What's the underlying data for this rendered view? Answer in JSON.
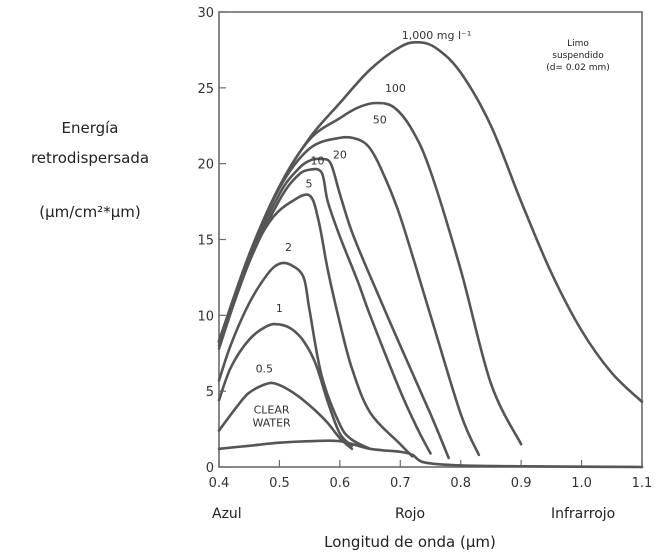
{
  "chart_data": {
    "type": "line",
    "title": "",
    "xlabel": "Longitud de onda (µm)",
    "ylabel_lines": [
      "Energía",
      "retrodispersada",
      "(µm/cm²*µm)"
    ],
    "xlim": [
      0.4,
      1.1
    ],
    "ylim": [
      0,
      30
    ],
    "x_ticks": [
      0.4,
      0.5,
      0.6,
      0.7,
      0.8,
      0.9,
      1.0,
      1.1
    ],
    "x_tick_labels": [
      "0.4",
      "0.5",
      "0.6",
      "0.7",
      "0.8",
      "0.9",
      "1.0",
      "1.1"
    ],
    "y_ticks": [
      0,
      5,
      10,
      15,
      20,
      25,
      30
    ],
    "y_tick_labels": [
      "0",
      "5",
      "10",
      "15",
      "20",
      "25",
      "30"
    ],
    "band_labels": [
      {
        "text": "Azul",
        "x": 0.42
      },
      {
        "text": "Rojo",
        "x": 0.7
      },
      {
        "text": "Infrarrojo",
        "x": 1.0
      }
    ],
    "annotation_lines": [
      "Limo",
      "suspendido",
      "(d= 0.02 mm)"
    ],
    "grid": false,
    "series": [
      {
        "label": "CLEAR WATER",
        "label_lines": [
          "CLEAR",
          "WATER"
        ],
        "label_at": [
          0.487,
          3.0
        ],
        "x": [
          0.4,
          0.45,
          0.5,
          0.55,
          0.6,
          0.65,
          0.7,
          0.72,
          0.74,
          0.8,
          0.9,
          1.0,
          1.1
        ],
        "y": [
          1.2,
          1.4,
          1.6,
          1.7,
          1.7,
          1.2,
          1.0,
          0.8,
          0.3,
          0.1,
          0.05,
          0.02,
          0.0
        ]
      },
      {
        "label": "0.5",
        "label_at": [
          0.475,
          6.5
        ],
        "x": [
          0.4,
          0.43,
          0.45,
          0.48,
          0.5,
          0.53,
          0.56,
          0.58,
          0.6,
          0.62
        ],
        "y": [
          2.4,
          4.0,
          4.9,
          5.5,
          5.4,
          4.7,
          3.7,
          2.9,
          1.9,
          1.2
        ]
      },
      {
        "label": "1",
        "label_at": [
          0.5,
          10.5
        ],
        "x": [
          0.4,
          0.42,
          0.45,
          0.48,
          0.5,
          0.52,
          0.54,
          0.56,
          0.58,
          0.6,
          0.62
        ],
        "y": [
          4.4,
          6.6,
          8.4,
          9.3,
          9.4,
          9.1,
          8.3,
          6.8,
          4.3,
          2.2,
          1.4
        ]
      },
      {
        "label": "2",
        "label_at": [
          0.515,
          14.5
        ],
        "x": [
          0.4,
          0.42,
          0.45,
          0.48,
          0.5,
          0.52,
          0.54,
          0.55,
          0.57,
          0.6,
          0.62,
          0.65
        ],
        "y": [
          5.7,
          8.1,
          10.8,
          12.7,
          13.4,
          13.3,
          12.5,
          10.3,
          6.0,
          2.8,
          1.8,
          1.2
        ]
      },
      {
        "label": "5",
        "label_at": [
          0.549,
          18.7
        ],
        "x": [
          0.4,
          0.43,
          0.46,
          0.49,
          0.52,
          0.55,
          0.565,
          0.58,
          0.6,
          0.62,
          0.65,
          0.7,
          0.72
        ],
        "y": [
          7.8,
          11.4,
          14.5,
          16.5,
          17.5,
          17.9,
          16.2,
          13.0,
          9.5,
          6.5,
          3.6,
          1.5,
          0.7
        ]
      },
      {
        "label": "10",
        "label_at": [
          0.563,
          20.2
        ],
        "x": [
          0.4,
          0.45,
          0.5,
          0.53,
          0.55,
          0.57,
          0.58,
          0.6,
          0.63,
          0.65,
          0.7,
          0.73,
          0.75
        ],
        "y": [
          8.0,
          13.5,
          17.6,
          19.2,
          19.6,
          19.4,
          17.5,
          15.2,
          12.2,
          10.0,
          5.0,
          2.4,
          0.9
        ]
      },
      {
        "label": "20",
        "label_at": [
          0.6,
          20.6
        ],
        "x": [
          0.4,
          0.45,
          0.5,
          0.53,
          0.55,
          0.57,
          0.585,
          0.6,
          0.62,
          0.65,
          0.7,
          0.75,
          0.78
        ],
        "y": [
          8.2,
          13.8,
          18.0,
          19.6,
          20.2,
          20.3,
          20.0,
          18.0,
          15.5,
          12.6,
          8.0,
          3.5,
          0.6
        ]
      },
      {
        "label": "50",
        "label_at": [
          0.666,
          22.9
        ],
        "x": [
          0.4,
          0.45,
          0.5,
          0.55,
          0.6,
          0.63,
          0.65,
          0.67,
          0.7,
          0.75,
          0.8,
          0.83
        ],
        "y": [
          8.3,
          14.0,
          18.4,
          21.0,
          21.7,
          21.6,
          21.0,
          19.5,
          16.5,
          10.0,
          3.5,
          0.8
        ]
      },
      {
        "label": "100",
        "label_at": [
          0.692,
          25.0
        ],
        "x": [
          0.4,
          0.45,
          0.5,
          0.55,
          0.6,
          0.63,
          0.66,
          0.69,
          0.72,
          0.75,
          0.8,
          0.85,
          0.9
        ],
        "y": [
          8.3,
          14.0,
          18.5,
          21.6,
          23.0,
          23.7,
          24.0,
          23.7,
          22.2,
          19.5,
          13.0,
          5.5,
          1.5
        ]
      },
      {
        "label": "1,000 mg l⁻¹",
        "label_at": [
          0.76,
          28.5
        ],
        "x": [
          0.4,
          0.45,
          0.5,
          0.55,
          0.6,
          0.65,
          0.7,
          0.73,
          0.76,
          0.8,
          0.85,
          0.9,
          0.95,
          1.0,
          1.05,
          1.1
        ],
        "y": [
          8.3,
          14.0,
          18.5,
          21.7,
          24.0,
          26.2,
          27.7,
          28.0,
          27.6,
          26.0,
          22.5,
          17.5,
          12.8,
          9.0,
          6.2,
          4.3
        ]
      }
    ]
  }
}
